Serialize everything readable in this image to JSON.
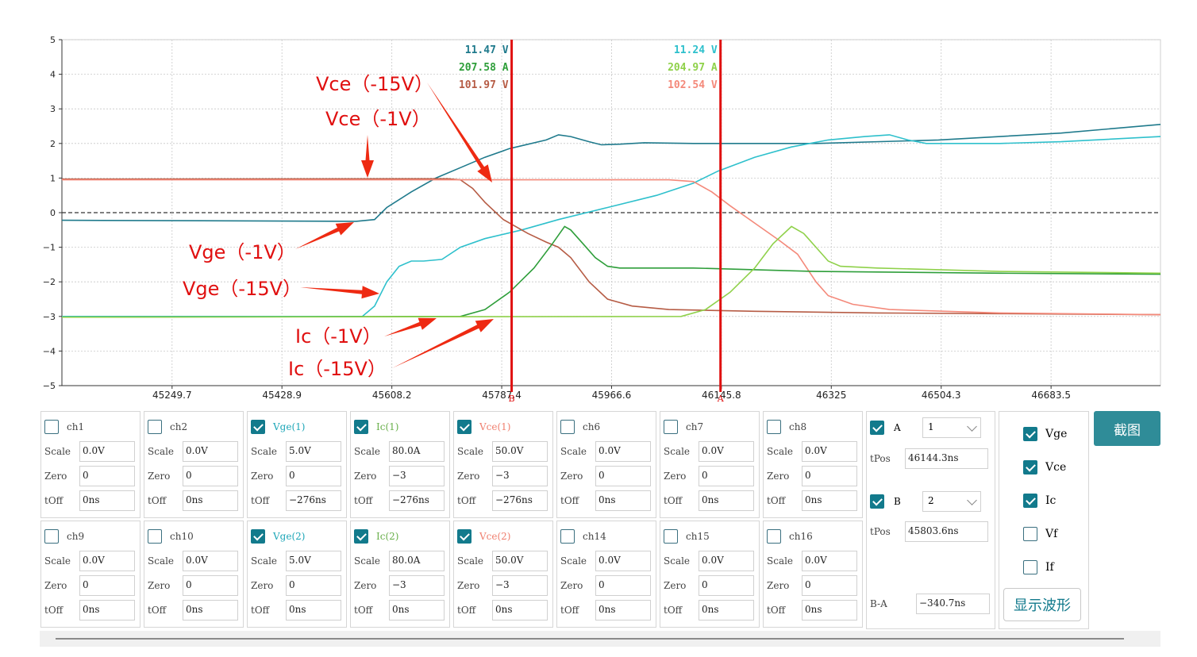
{
  "chart_data": {
    "type": "line",
    "yticks": [
      "5",
      "4",
      "3",
      "2",
      "1",
      "0",
      "−1",
      "−2",
      "−3",
      "−4",
      "−5"
    ],
    "ylim": [
      -5,
      5
    ],
    "xticks": [
      "45249.7",
      "45428.9",
      "45608.2",
      "45787.4",
      "45966.6",
      "46145.8",
      "46325",
      "46504.3",
      "46683.5"
    ],
    "xtick_values": [
      45249.7,
      45428.9,
      45608.2,
      45787.4,
      45966.6,
      46145.8,
      46325,
      46504.3,
      46683.5
    ],
    "xlim": [
      45070,
      46862
    ],
    "grid": true,
    "series": [
      {
        "name": "Vge(-1V)",
        "color": "#1f7a8c",
        "points": [
          [
            45070,
            -0.22
          ],
          [
            45550,
            -0.25
          ],
          [
            45580,
            -0.2
          ],
          [
            45600,
            0.15
          ],
          [
            45640,
            0.6
          ],
          [
            45680,
            1.0
          ],
          [
            45720,
            1.3
          ],
          [
            45760,
            1.6
          ],
          [
            45800,
            1.85
          ],
          [
            45860,
            2.1
          ],
          [
            45880,
            2.25
          ],
          [
            45900,
            2.2
          ],
          [
            45930,
            2.05
          ],
          [
            45950,
            1.96
          ],
          [
            45980,
            1.98
          ],
          [
            46020,
            2.02
          ],
          [
            46100,
            2.0
          ],
          [
            46300,
            2.0
          ],
          [
            46500,
            2.1
          ],
          [
            46700,
            2.3
          ],
          [
            46862,
            2.55
          ]
        ]
      },
      {
        "name": "Vge(-15V)",
        "color": "#2ec0cc",
        "points": [
          [
            45070,
            -3.0
          ],
          [
            45560,
            -3.0
          ],
          [
            45580,
            -2.7
          ],
          [
            45600,
            -2.0
          ],
          [
            45620,
            -1.55
          ],
          [
            45640,
            -1.4
          ],
          [
            45660,
            -1.4
          ],
          [
            45690,
            -1.35
          ],
          [
            45720,
            -1.0
          ],
          [
            45760,
            -0.75
          ],
          [
            45820,
            -0.5
          ],
          [
            45880,
            -0.2
          ],
          [
            45960,
            0.15
          ],
          [
            46040,
            0.5
          ],
          [
            46100,
            0.85
          ],
          [
            46140,
            1.2
          ],
          [
            46200,
            1.6
          ],
          [
            46260,
            1.9
          ],
          [
            46320,
            2.1
          ],
          [
            46380,
            2.2
          ],
          [
            46420,
            2.25
          ],
          [
            46450,
            2.1
          ],
          [
            46480,
            2.0
          ],
          [
            46600,
            2.0
          ],
          [
            46700,
            2.05
          ],
          [
            46862,
            2.2
          ]
        ]
      },
      {
        "name": "Vce(-1V)",
        "color": "#b65c45",
        "points": [
          [
            45070,
            0.97
          ],
          [
            45700,
            0.98
          ],
          [
            45720,
            0.95
          ],
          [
            45740,
            0.7
          ],
          [
            45760,
            0.3
          ],
          [
            45790,
            -0.2
          ],
          [
            45830,
            -0.6
          ],
          [
            45860,
            -0.85
          ],
          [
            45880,
            -1.0
          ],
          [
            45900,
            -1.3
          ],
          [
            45930,
            -2.0
          ],
          [
            45960,
            -2.5
          ],
          [
            46000,
            -2.7
          ],
          [
            46060,
            -2.8
          ],
          [
            46200,
            -2.85
          ],
          [
            46400,
            -2.9
          ],
          [
            46600,
            -2.92
          ],
          [
            46862,
            -2.95
          ]
        ]
      },
      {
        "name": "Vce(-15V)",
        "color": "#f4897a",
        "points": [
          [
            45070,
            0.95
          ],
          [
            46060,
            0.95
          ],
          [
            46100,
            0.9
          ],
          [
            46130,
            0.6
          ],
          [
            46160,
            0.2
          ],
          [
            46200,
            -0.3
          ],
          [
            46240,
            -0.8
          ],
          [
            46270,
            -1.2
          ],
          [
            46300,
            -2.0
          ],
          [
            46320,
            -2.4
          ],
          [
            46360,
            -2.65
          ],
          [
            46420,
            -2.8
          ],
          [
            46600,
            -2.9
          ],
          [
            46862,
            -2.95
          ]
        ]
      },
      {
        "name": "Ic(-1V)",
        "color": "#2e9e3a",
        "points": [
          [
            45070,
            -3.02
          ],
          [
            45720,
            -3.0
          ],
          [
            45760,
            -2.8
          ],
          [
            45800,
            -2.3
          ],
          [
            45840,
            -1.6
          ],
          [
            45870,
            -0.9
          ],
          [
            45890,
            -0.4
          ],
          [
            45900,
            -0.5
          ],
          [
            45920,
            -0.9
          ],
          [
            45940,
            -1.3
          ],
          [
            45960,
            -1.55
          ],
          [
            45980,
            -1.6
          ],
          [
            46100,
            -1.6
          ],
          [
            46300,
            -1.7
          ],
          [
            46600,
            -1.75
          ],
          [
            46862,
            -1.78
          ]
        ]
      },
      {
        "name": "Ic(-15V)",
        "color": "#8fd14a",
        "points": [
          [
            45070,
            -3.02
          ],
          [
            46080,
            -3.0
          ],
          [
            46120,
            -2.8
          ],
          [
            46160,
            -2.3
          ],
          [
            46200,
            -1.6
          ],
          [
            46230,
            -0.9
          ],
          [
            46260,
            -0.4
          ],
          [
            46280,
            -0.6
          ],
          [
            46300,
            -1.0
          ],
          [
            46320,
            -1.4
          ],
          [
            46340,
            -1.55
          ],
          [
            46400,
            -1.6
          ],
          [
            46600,
            -1.7
          ],
          [
            46862,
            -1.75
          ]
        ]
      }
    ],
    "cursors": [
      {
        "name": "B",
        "x": 45803.6,
        "readout_color": [
          "#1f7a8c",
          "#2e9e3a",
          "#b65c45"
        ],
        "readouts": [
          "11.47 V",
          "207.58 A",
          "101.97 V"
        ]
      },
      {
        "name": "A",
        "x": 46144.3,
        "readout_color": [
          "#2ec0cc",
          "#8fd14a",
          "#f4897a"
        ],
        "readouts": [
          "11.24 V",
          "204.97 A",
          "102.54 V"
        ]
      }
    ],
    "annotations": [
      {
        "text": "Vce（-15V）"
      },
      {
        "text": "Vce（-1V）"
      },
      {
        "text": "Vge（-1V）"
      },
      {
        "text": "Vge（-15V）"
      },
      {
        "text": "Ic（-1V）"
      },
      {
        "text": "Ic（-15V）"
      }
    ]
  },
  "labels": {
    "scale": "Scale",
    "zero": "Zero",
    "toff": "tOff",
    "tpos": "tPos",
    "ba": "B-A"
  },
  "channels_row1": [
    {
      "name": "ch1",
      "checked": false,
      "color": "#444",
      "scale": "0.0V",
      "zero": "0",
      "toff": "0ns"
    },
    {
      "name": "ch2",
      "checked": false,
      "color": "#444",
      "scale": "0.0V",
      "zero": "0",
      "toff": "0ns"
    },
    {
      "name": "Vge(1)",
      "checked": true,
      "color": "#1fa7b8",
      "scale": "5.0V",
      "zero": "0",
      "toff": "−276ns"
    },
    {
      "name": "Ic(1)",
      "checked": true,
      "color": "#6ab04c",
      "scale": "80.0A",
      "zero": "−3",
      "toff": "−276ns"
    },
    {
      "name": "Vce(1)",
      "checked": true,
      "color": "#f08070",
      "scale": "50.0V",
      "zero": "−3",
      "toff": "−276ns"
    },
    {
      "name": "ch6",
      "checked": false,
      "color": "#444",
      "scale": "0.0V",
      "zero": "0",
      "toff": "0ns"
    },
    {
      "name": "ch7",
      "checked": false,
      "color": "#444",
      "scale": "0.0V",
      "zero": "0",
      "toff": "0ns"
    },
    {
      "name": "ch8",
      "checked": false,
      "color": "#444",
      "scale": "0.0V",
      "zero": "0",
      "toff": "0ns"
    }
  ],
  "channels_row2": [
    {
      "name": "ch9",
      "checked": false,
      "color": "#444",
      "scale": "0.0V",
      "zero": "0",
      "toff": "0ns"
    },
    {
      "name": "ch10",
      "checked": false,
      "color": "#444",
      "scale": "0.0V",
      "zero": "0",
      "toff": "0ns"
    },
    {
      "name": "Vge(2)",
      "checked": true,
      "color": "#1fa7b8",
      "scale": "5.0V",
      "zero": "0",
      "toff": "0ns"
    },
    {
      "name": "Ic(2)",
      "checked": true,
      "color": "#6ab04c",
      "scale": "80.0A",
      "zero": "−3",
      "toff": "0ns"
    },
    {
      "name": "Vce(2)",
      "checked": true,
      "color": "#f08070",
      "scale": "50.0V",
      "zero": "−3",
      "toff": "0ns"
    },
    {
      "name": "ch14",
      "checked": false,
      "color": "#444",
      "scale": "0.0V",
      "zero": "0",
      "toff": "0ns"
    },
    {
      "name": "ch15",
      "checked": false,
      "color": "#444",
      "scale": "0.0V",
      "zero": "0",
      "toff": "0ns"
    },
    {
      "name": "ch16",
      "checked": false,
      "color": "#444",
      "scale": "0.0V",
      "zero": "0",
      "toff": "0ns"
    }
  ],
  "cursor_panel": {
    "a_label": "A",
    "a_value": "1",
    "a_tpos": "46144.3ns",
    "b_label": "B",
    "b_value": "2",
    "b_tpos": "45803.6ns",
    "ba_value": "−340.7ns"
  },
  "signals": [
    {
      "name": "Vge",
      "checked": true
    },
    {
      "name": "Vce",
      "checked": true
    },
    {
      "name": "Ic",
      "checked": true
    },
    {
      "name": "Vf",
      "checked": false
    },
    {
      "name": "If",
      "checked": false
    }
  ],
  "buttons": {
    "show_wave": "显示波形",
    "screenshot": "截图"
  }
}
